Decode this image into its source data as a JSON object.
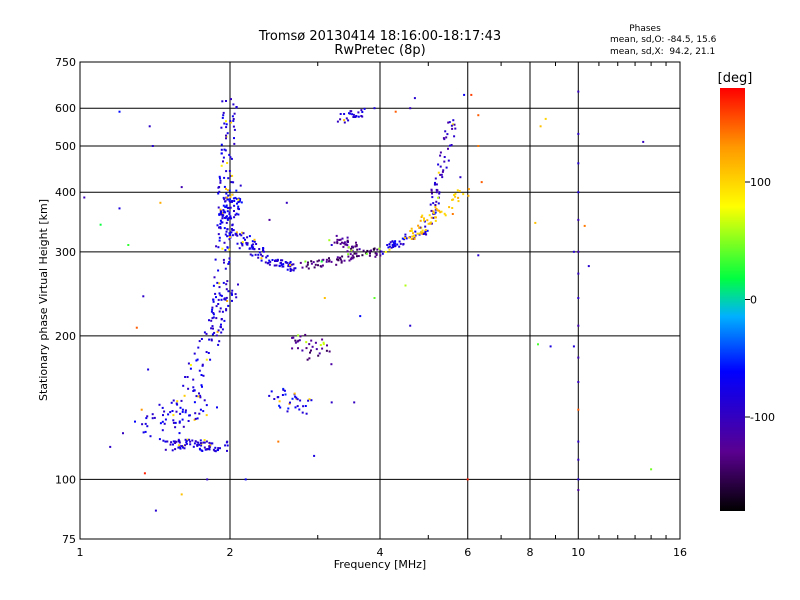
{
  "chart_data": {
    "type": "scatter",
    "title": "Tromsø 20130414 18:16:00-18:17:43",
    "subtitle": "RwPretec (8p)",
    "xlabel": "Frequency [MHz]",
    "ylabel": "Stationary phase Virtual Height [km]",
    "x_scale": "log",
    "y_scale": "log",
    "xlim": [
      1,
      16
    ],
    "ylim": [
      75,
      750
    ],
    "x_ticks": [
      1,
      2,
      4,
      6,
      8,
      10,
      16
    ],
    "y_ticks": [
      75,
      100,
      200,
      300,
      400,
      500,
      600,
      750
    ],
    "grid": true,
    "stats": {
      "heading": "Phases",
      "line_o": "mean, sd,O: -84.5, 15.6",
      "line_x": "mean, sd,X:  94.2, 21.1"
    },
    "colorbar": {
      "label": "[deg]",
      "range": [
        -180,
        180
      ],
      "ticks": [
        100,
        0,
        -100
      ]
    },
    "traces": [
      {
        "from": [
          1.48,
          118
        ],
        "to": [
          1.95,
          118
        ],
        "phase": -85,
        "n": 80,
        "spread": 0.03
      },
      {
        "from": [
          1.5,
          120
        ],
        "to": [
          2.0,
          250
        ],
        "phase": -80,
        "n": 90,
        "spread": 0.05
      },
      {
        "from": [
          1.9,
          200
        ],
        "to": [
          2.0,
          620
        ],
        "phase": -82,
        "n": 140,
        "spread": 0.035
      },
      {
        "from": [
          1.95,
          340
        ],
        "to": [
          2.05,
          400
        ],
        "phase": -75,
        "n": 80,
        "spread": 0.04
      },
      {
        "from": [
          2.0,
          330
        ],
        "to": [
          2.3,
          300
        ],
        "phase": -80,
        "n": 60,
        "spread": 0.03
      },
      {
        "from": [
          2.3,
          290
        ],
        "to": [
          2.7,
          278
        ],
        "phase": -85,
        "n": 50,
        "spread": 0.02
      },
      {
        "from": [
          2.8,
          280
        ],
        "to": [
          4.0,
          300
        ],
        "phase": -140,
        "n": 70,
        "spread": 0.02
      },
      {
        "from": [
          3.2,
          325
        ],
        "to": [
          3.6,
          305
        ],
        "phase": -130,
        "n": 40,
        "spread": 0.03
      },
      {
        "from": [
          4.0,
          300
        ],
        "to": [
          5.0,
          335
        ],
        "phase": -80,
        "n": 50,
        "spread": 0.02
      },
      {
        "from": [
          5.0,
          340
        ],
        "to": [
          5.6,
          560
        ],
        "phase": -100,
        "n": 60,
        "spread": 0.025
      },
      {
        "from": [
          4.5,
          320
        ],
        "to": [
          5.9,
          400
        ],
        "phase": 110,
        "n": 60,
        "spread": 0.03
      },
      {
        "from": [
          2.7,
          200
        ],
        "to": [
          3.1,
          180
        ],
        "phase": -130,
        "n": 35,
        "spread": 0.05
      },
      {
        "from": [
          3.3,
          570
        ],
        "to": [
          3.7,
          590
        ],
        "phase": -85,
        "n": 25,
        "spread": 0.02
      },
      {
        "from": [
          2.5,
          150
        ],
        "to": [
          2.9,
          140
        ],
        "phase": -70,
        "n": 35,
        "spread": 0.05
      },
      {
        "from": [
          1.3,
          130
        ],
        "to": [
          1.8,
          145
        ],
        "phase": -78,
        "n": 50,
        "spread": 0.07
      }
    ],
    "scatter_points": [
      [
        10.0,
        650,
        -100
      ],
      [
        10.0,
        530,
        -95
      ],
      [
        10.0,
        460,
        -90
      ],
      [
        10.0,
        400,
        -85
      ],
      [
        10.0,
        350,
        -105
      ],
      [
        10.0,
        300,
        -110
      ],
      [
        10.0,
        270,
        -100
      ],
      [
        10.0,
        240,
        -95
      ],
      [
        10.0,
        210,
        -110
      ],
      [
        10.0,
        180,
        -105
      ],
      [
        10.0,
        160,
        -100
      ],
      [
        10.0,
        140,
        150
      ],
      [
        10.0,
        120,
        -95
      ],
      [
        10.0,
        110,
        -100
      ],
      [
        10.0,
        100,
        -90
      ],
      [
        10.0,
        95,
        -120
      ],
      [
        9.8,
        300,
        -90
      ],
      [
        9.8,
        190,
        -85
      ],
      [
        8.4,
        550,
        110
      ],
      [
        8.6,
        570,
        100
      ],
      [
        8.2,
        345,
        110
      ],
      [
        8.3,
        192,
        35
      ],
      [
        8.8,
        190,
        -80
      ],
      [
        10.5,
        280,
        -90
      ],
      [
        10.3,
        340,
        140
      ],
      [
        6.1,
        640,
        160
      ],
      [
        6.3,
        580,
        150
      ],
      [
        6.3,
        500,
        140
      ],
      [
        6.4,
        420,
        150
      ],
      [
        6.3,
        295,
        -90
      ],
      [
        5.9,
        640,
        -70
      ],
      [
        5.8,
        430,
        -95
      ],
      [
        6.0,
        100,
        170
      ],
      [
        4.7,
        630,
        -90
      ],
      [
        4.6,
        600,
        -100
      ],
      [
        4.3,
        590,
        150
      ],
      [
        3.9,
        600,
        -80
      ],
      [
        3.4,
        560,
        -100
      ],
      [
        3.2,
        310,
        -90
      ],
      [
        3.1,
        240,
        110
      ],
      [
        2.6,
        380,
        -100
      ],
      [
        2.4,
        350,
        -120
      ],
      [
        1.2,
        590,
        -60
      ],
      [
        1.38,
        550,
        -95
      ],
      [
        1.4,
        500,
        -90
      ],
      [
        1.45,
        380,
        120
      ],
      [
        1.6,
        410,
        -110
      ],
      [
        1.2,
        370,
        -80
      ],
      [
        1.25,
        310,
        30
      ],
      [
        1.34,
        242,
        -95
      ],
      [
        1.02,
        390,
        -105
      ],
      [
        1.3,
        208,
        150
      ],
      [
        1.37,
        170,
        -80
      ],
      [
        1.33,
        140,
        130
      ],
      [
        1.22,
        125,
        -100
      ],
      [
        1.15,
        117,
        -95
      ],
      [
        1.35,
        103,
        170
      ],
      [
        1.42,
        86,
        -90
      ],
      [
        1.6,
        93,
        110
      ],
      [
        1.8,
        100,
        -95
      ],
      [
        2.15,
        100,
        -70
      ],
      [
        2.5,
        120,
        140
      ],
      [
        2.95,
        112,
        -80
      ],
      [
        3.2,
        145,
        -95
      ],
      [
        3.55,
        145,
        -100
      ],
      [
        3.65,
        220,
        -60
      ],
      [
        3.9,
        240,
        40
      ],
      [
        4.5,
        255,
        60
      ],
      [
        4.6,
        210,
        -90
      ],
      [
        5.2,
        400,
        -95
      ],
      [
        5.6,
        360,
        140
      ],
      [
        13.5,
        510,
        -100
      ],
      [
        14.0,
        105,
        45
      ],
      [
        1.1,
        342,
        20
      ]
    ]
  }
}
